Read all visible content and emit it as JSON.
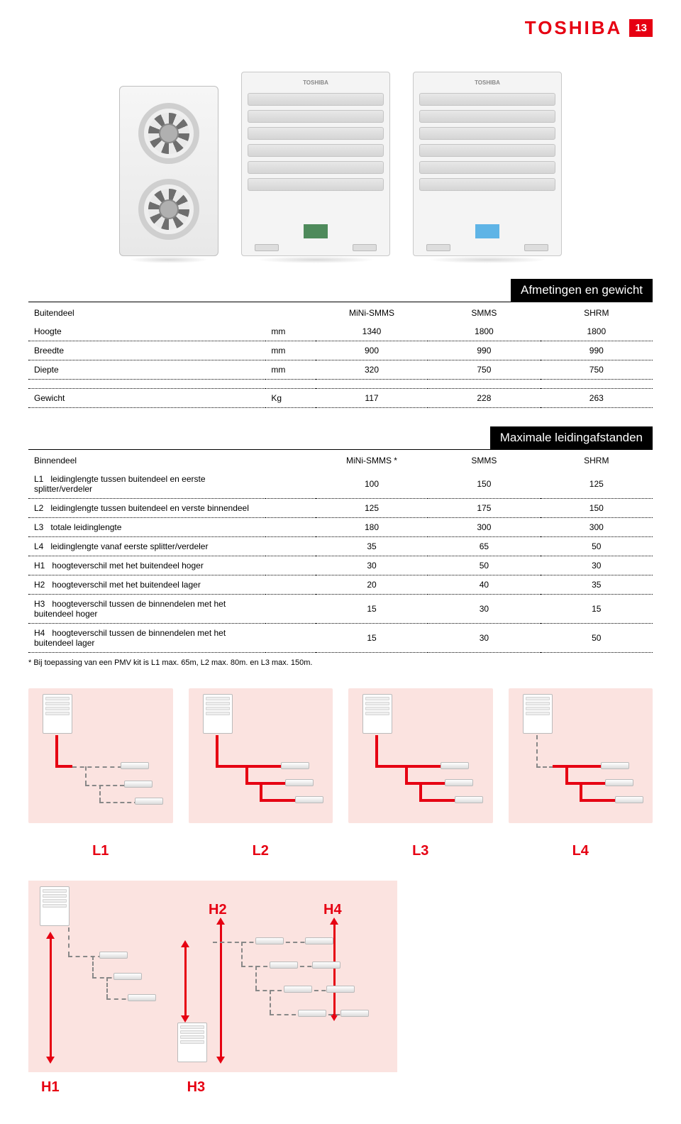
{
  "header": {
    "brand": "TOSHIBA",
    "page_num": "13"
  },
  "colors": {
    "accent": "#e60012",
    "panel_bg": "#fbe3e0",
    "label_green": "#4e8a5b",
    "label_blue": "#5fb4e6"
  },
  "table1": {
    "title": "Afmetingen en gewicht",
    "row_header": "Buitendeel",
    "cols": [
      "MiNi-SMMS",
      "SMMS",
      "SHRM"
    ],
    "unit_col": "",
    "rows": [
      {
        "label": "Hoogte",
        "unit": "mm",
        "v": [
          "1340",
          "1800",
          "1800"
        ]
      },
      {
        "label": "Breedte",
        "unit": "mm",
        "v": [
          "900",
          "990",
          "990"
        ]
      },
      {
        "label": "Diepte",
        "unit": "mm",
        "v": [
          "320",
          "750",
          "750"
        ]
      }
    ],
    "gewicht": {
      "label": "Gewicht",
      "unit": "Kg",
      "v": [
        "117",
        "228",
        "263"
      ]
    }
  },
  "table2": {
    "title": "Maximale leidingafstanden",
    "row_header": "Binnendeel",
    "cols": [
      "MiNi-SMMS *",
      "SMMS",
      "SHRM"
    ],
    "rows": [
      {
        "code": "L1",
        "label": "leidinglengte tussen buitendeel en eerste splitter/verdeler",
        "v": [
          "100",
          "150",
          "125"
        ]
      },
      {
        "code": "L2",
        "label": "leidinglengte tussen buitendeel en verste binnendeel",
        "v": [
          "125",
          "175",
          "150"
        ]
      },
      {
        "code": "L3",
        "label": "totale leidinglengte",
        "v": [
          "180",
          "300",
          "300"
        ]
      },
      {
        "code": "L4",
        "label": "leidinglengte vanaf eerste splitter/verdeler",
        "v": [
          "35",
          "65",
          "50"
        ]
      },
      {
        "code": "H1",
        "label": "hoogteverschil met het buitendeel hoger",
        "v": [
          "30",
          "50",
          "30"
        ]
      },
      {
        "code": "H2",
        "label": "hoogteverschil met het buitendeel lager",
        "v": [
          "20",
          "40",
          "35"
        ]
      },
      {
        "code": "H3",
        "label": "hoogteverschil tussen de binnendelen met het buitendeel hoger",
        "v": [
          "15",
          "30",
          "15"
        ]
      },
      {
        "code": "H4",
        "label": "hoogteverschil tussen de binnendelen met het buitendeel lager",
        "v": [
          "15",
          "30",
          "50"
        ]
      }
    ],
    "footnote": "* Bij toepassing van een PMV kit is L1 max. 65m, L2 max. 80m. en L3 max. 150m."
  },
  "diag_labels": [
    "L1",
    "L2",
    "L3",
    "L4"
  ],
  "h_labels": {
    "h1": "H1",
    "h2": "H2",
    "h3": "H3",
    "h4": "H4"
  }
}
